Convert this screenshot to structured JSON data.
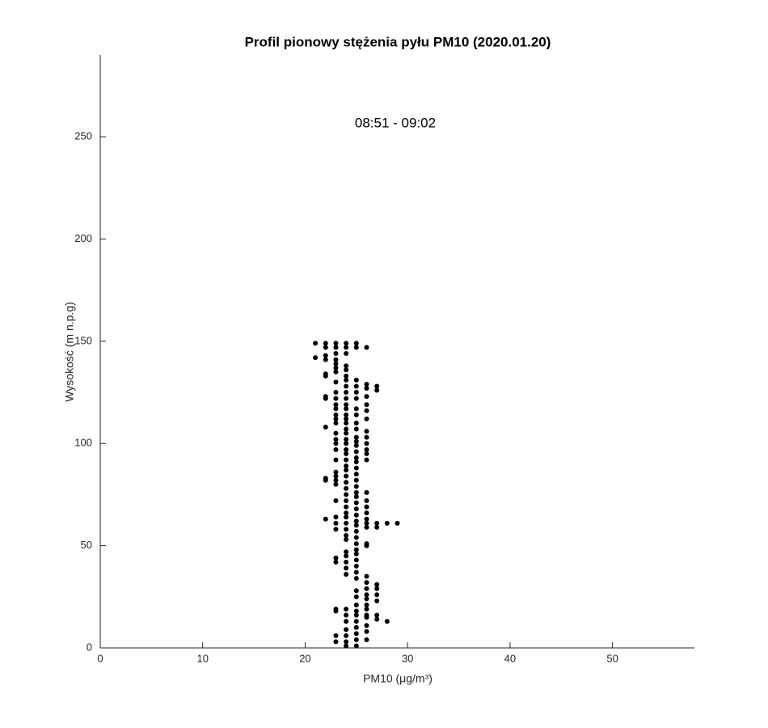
{
  "chart_data": {
    "type": "scatter",
    "title": "Profil pionowy stężenia pyłu PM10 (2020.01.20)",
    "annotation": "08:51 - 09:02",
    "xlabel": "PM10 (μg/m³)",
    "ylabel": "Wysokość (m n.p.g)",
    "color": "#000000",
    "xlim": [
      0,
      58
    ],
    "xticks": [
      0,
      10,
      20,
      30,
      40,
      50
    ],
    "ylim": [
      0,
      290
    ],
    "yticks": [
      0,
      50,
      100,
      150,
      200,
      250
    ],
    "x": [
      21,
      21,
      22,
      22,
      22,
      22,
      22,
      22,
      22,
      22,
      22,
      22,
      22,
      22,
      23,
      23,
      23,
      23,
      23,
      23,
      23,
      23,
      23,
      23,
      23,
      23,
      23,
      23,
      23,
      23,
      23,
      23,
      23,
      23,
      23,
      23,
      23,
      23,
      23,
      23,
      23,
      23,
      23,
      23,
      23,
      23,
      23,
      23,
      24,
      24,
      24,
      24,
      24,
      24,
      24,
      24,
      24,
      24,
      24,
      24,
      24,
      24,
      24,
      24,
      24,
      24,
      24,
      24,
      24,
      24,
      24,
      24,
      24,
      24,
      24,
      24,
      24,
      24,
      24,
      24,
      24,
      24,
      24,
      24,
      24,
      24,
      24,
      24,
      24,
      24,
      24,
      24,
      24,
      24,
      24,
      24,
      25,
      25,
      25,
      25,
      25,
      25,
      25,
      25,
      25,
      25,
      25,
      25,
      25,
      25,
      25,
      25,
      25,
      25,
      25,
      25,
      25,
      25,
      25,
      25,
      25,
      25,
      25,
      25,
      25,
      25,
      25,
      25,
      25,
      25,
      25,
      25,
      25,
      25,
      25,
      25,
      25,
      25,
      25,
      25,
      25,
      25,
      26,
      26,
      26,
      26,
      26,
      26,
      26,
      26,
      26,
      26,
      26,
      26,
      26,
      26,
      26,
      26,
      26,
      26,
      26,
      26,
      26,
      26,
      26,
      26,
      26,
      26,
      26,
      26,
      26,
      26,
      26,
      26,
      26,
      26,
      27,
      27,
      27,
      27,
      27,
      27,
      27,
      27,
      27,
      27,
      28,
      28,
      29
    ],
    "y": [
      149,
      142,
      149,
      147,
      143,
      141,
      134,
      133,
      123,
      122,
      108,
      83,
      82,
      63,
      149,
      147,
      144,
      141,
      139,
      137,
      135,
      130,
      125,
      122,
      119,
      117,
      114,
      112,
      110,
      105,
      102,
      100,
      97,
      92,
      86,
      84,
      82,
      80,
      72,
      64,
      61,
      58,
      44,
      42,
      19,
      18,
      6,
      3,
      149,
      147,
      144,
      138,
      136,
      133,
      131,
      128,
      125,
      122,
      119,
      117,
      114,
      112,
      110,
      107,
      105,
      102,
      100,
      97,
      95,
      92,
      89,
      87,
      84,
      81,
      78,
      75,
      72,
      69,
      66,
      64,
      61,
      58,
      55,
      53,
      47,
      45,
      42,
      39,
      36,
      19,
      16,
      13,
      9,
      6,
      3,
      1,
      149,
      147,
      131,
      128,
      125,
      122,
      117,
      114,
      110,
      107,
      103,
      101,
      99,
      96,
      93,
      91,
      88,
      85,
      82,
      79,
      76,
      74,
      71,
      68,
      65,
      62,
      60,
      57,
      54,
      51,
      48,
      46,
      43,
      40,
      37,
      34,
      28,
      25,
      21,
      18,
      16,
      13,
      10,
      7,
      4,
      1,
      147,
      129,
      127,
      123,
      119,
      116,
      112,
      106,
      103,
      100,
      97,
      95,
      92,
      76,
      72,
      69,
      66,
      63,
      61,
      59,
      51,
      50,
      35,
      32,
      29,
      26,
      24,
      21,
      19,
      16,
      15,
      11,
      8,
      4,
      128,
      126,
      61,
      59,
      31,
      29,
      26,
      23,
      16,
      14,
      61,
      13,
      61
    ]
  }
}
